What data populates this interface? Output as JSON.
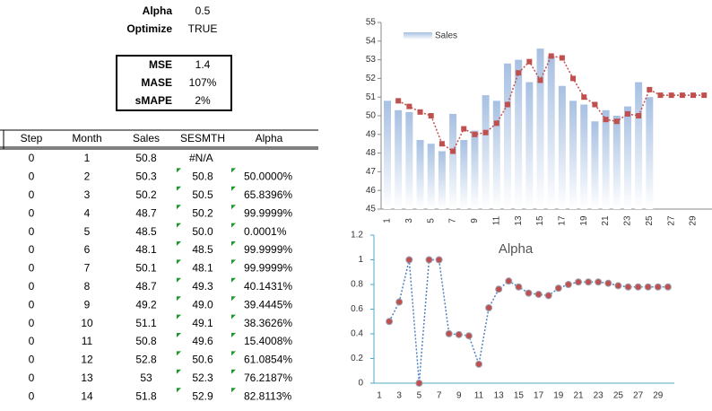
{
  "cells": {
    "alpha_label": "Alpha",
    "alpha_value": 0.5,
    "optimize_label": "Optimize",
    "optimize_value": "TRUE"
  },
  "stats": [
    {
      "label": "MSE",
      "value": 1.4
    },
    {
      "label": "MASE",
      "value": "107%"
    },
    {
      "label": "sMAPE",
      "value": "2%"
    }
  ],
  "table": {
    "columns": [
      "Step",
      "Month",
      "Sales",
      "SESMTH",
      "Alpha"
    ],
    "rows": [
      [
        0,
        1,
        50.8,
        "#N/A",
        null
      ],
      [
        0,
        2,
        50.3,
        "50.8",
        "50.0000%"
      ],
      [
        0,
        3,
        50.2,
        "50.5",
        "65.8396%"
      ],
      [
        0,
        4,
        48.7,
        "50.2",
        "99.9999%"
      ],
      [
        0,
        5,
        48.5,
        "50.0",
        "0.0001%"
      ],
      [
        0,
        6,
        48.1,
        "48.5",
        "99.9999%"
      ],
      [
        0,
        7,
        50.1,
        "48.1",
        "99.9999%"
      ],
      [
        0,
        8,
        48.7,
        "49.3",
        "40.1431%"
      ],
      [
        0,
        9,
        49.2,
        "49.0",
        "39.4445%"
      ],
      [
        0,
        10,
        51.1,
        "49.1",
        "38.3626%"
      ],
      [
        0,
        11,
        50.8,
        "49.6",
        "15.4008%"
      ],
      [
        0,
        12,
        52.8,
        "50.6",
        "61.0854%"
      ],
      [
        0,
        13,
        53,
        "52.3",
        "76.2187%"
      ],
      [
        0,
        14,
        51.8,
        "52.9",
        "82.8113%"
      ]
    ]
  },
  "chart_data": [
    {
      "type": "bar",
      "categories": [
        1,
        null,
        3,
        null,
        5,
        null,
        7,
        null,
        9,
        null,
        11,
        null,
        13,
        null,
        15,
        null,
        17,
        null,
        19,
        null,
        21,
        null,
        23,
        null,
        25,
        null,
        27,
        null,
        29,
        null
      ],
      "series": [
        {
          "name": "Sales",
          "type": "bar",
          "color": "#a7c0e2",
          "values": [
            50.8,
            50.3,
            50.2,
            48.7,
            48.5,
            48.1,
            50.1,
            48.7,
            49.2,
            51.1,
            50.8,
            52.8,
            53,
            51.8,
            53.6,
            53.2,
            51.6,
            50.8,
            50.6,
            49.7,
            50.3,
            50.0,
            50.5,
            51.8,
            51.0,
            null,
            null,
            null,
            null,
            null
          ]
        },
        {
          "type": "line",
          "color": "#c0504d",
          "values": [
            null,
            50.8,
            50.5,
            50.2,
            50.0,
            48.5,
            48.1,
            49.3,
            49.0,
            49.1,
            49.6,
            50.6,
            52.3,
            52.9,
            51.9,
            53.2,
            53.1,
            52.0,
            51.0,
            50.6,
            49.8,
            49.7,
            50.1,
            50.0,
            51.4,
            51.1,
            51.1,
            51.1,
            51.1,
            51.1
          ]
        }
      ],
      "ylim": [
        45,
        55
      ],
      "yticks": [
        45,
        46,
        47,
        48,
        49,
        50,
        51,
        52,
        53,
        54,
        55
      ],
      "legend": "top-left"
    },
    {
      "type": "line",
      "title": "Alpha",
      "categories": [
        1,
        null,
        3,
        null,
        5,
        null,
        7,
        null,
        9,
        null,
        11,
        null,
        13,
        null,
        15,
        null,
        17,
        null,
        19,
        null,
        21,
        null,
        23,
        null,
        25,
        null,
        27,
        null,
        29,
        null
      ],
      "series": [
        {
          "color": "#4f81bd",
          "marker_color": "#c0504d",
          "values": [
            null,
            0.5,
            0.658,
            1.0,
            0.0,
            1.0,
            1.0,
            0.401,
            0.394,
            0.384,
            0.154,
            0.611,
            0.762,
            0.828,
            0.78,
            0.73,
            0.72,
            0.71,
            0.77,
            0.8,
            0.82,
            0.82,
            0.82,
            0.81,
            0.79,
            0.78,
            0.78,
            0.78,
            0.78,
            0.78
          ]
        }
      ],
      "ylim": [
        0,
        1.2
      ],
      "yticks": [
        0,
        0.2,
        0.4,
        0.6,
        0.8,
        1,
        1.2
      ]
    }
  ]
}
